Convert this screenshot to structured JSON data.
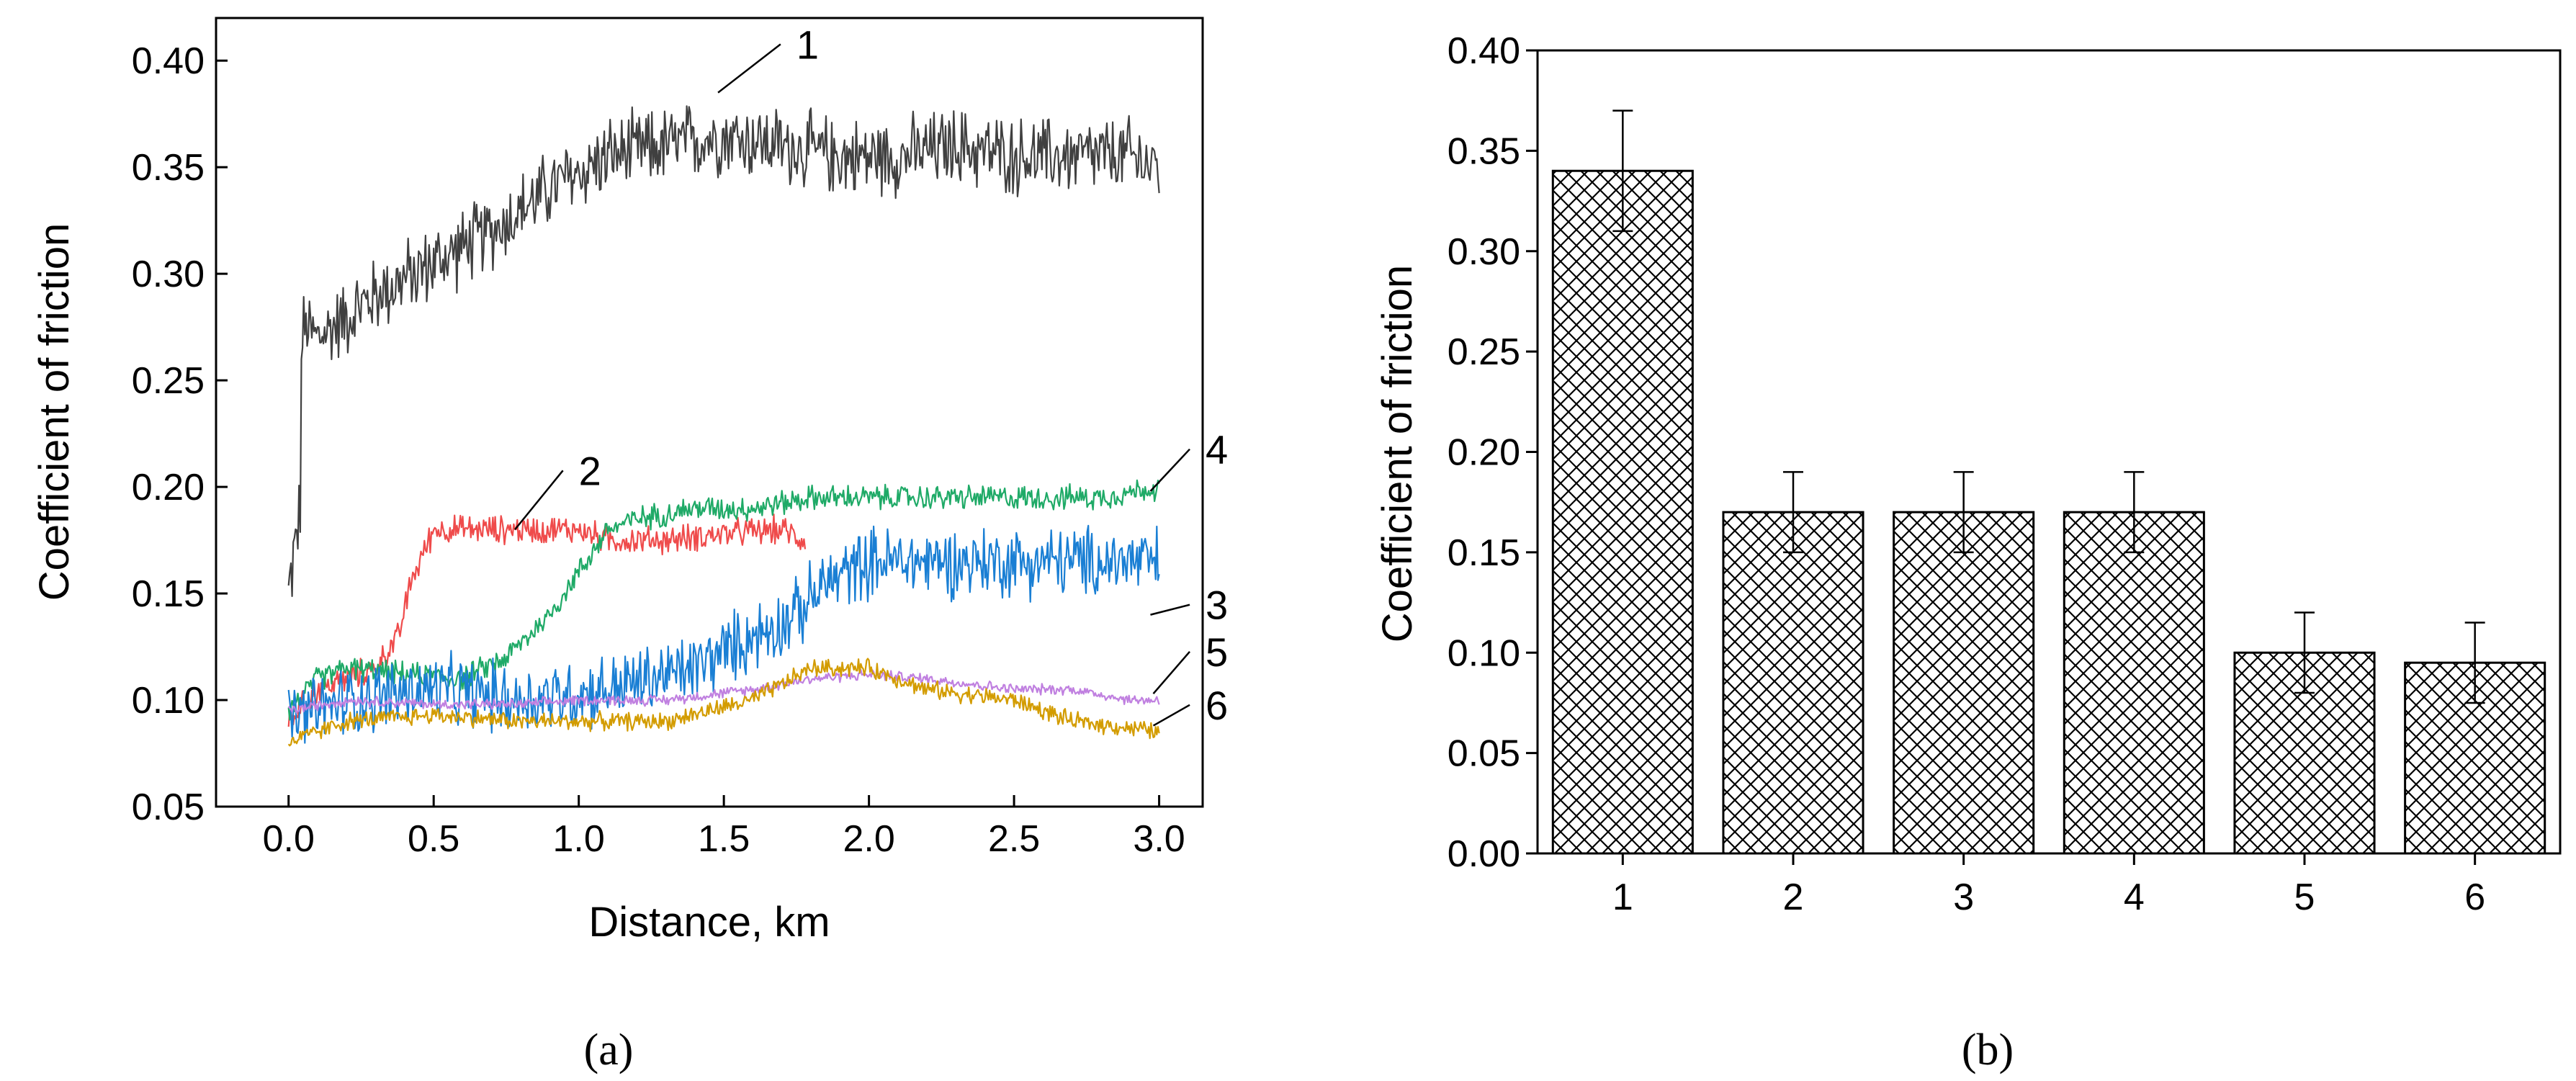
{
  "chart_data": [
    {
      "type": "line",
      "panel_label": "(a)",
      "xlabel": "Distance, km",
      "ylabel": "Coefficient of friction",
      "xlim": [
        -0.25,
        3.15
      ],
      "ylim": [
        0.05,
        0.42
      ],
      "xticks": [
        0.0,
        0.5,
        1.0,
        1.5,
        2.0,
        2.5,
        3.0
      ],
      "xtick_labels": [
        "0.0",
        "0.5",
        "1.0",
        "1.5",
        "2.0",
        "2.5",
        "3.0"
      ],
      "yticks": [
        0.05,
        0.1,
        0.15,
        0.2,
        0.25,
        0.3,
        0.35,
        0.4
      ],
      "ytick_labels": [
        "0.05",
        "0.10",
        "0.15",
        "0.20",
        "0.25",
        "0.30",
        "0.35",
        "0.40"
      ],
      "series": [
        {
          "name": "1",
          "color": "#404040",
          "noise": 0.022,
          "x": [
            0.0,
            0.02,
            0.04,
            0.045,
            0.06,
            0.1,
            0.3,
            0.5,
            0.7,
            0.9,
            1.1,
            1.3,
            1.5,
            1.7,
            1.9,
            2.1,
            2.3,
            2.5,
            2.7,
            2.9,
            3.0
          ],
          "y": [
            0.15,
            0.17,
            0.19,
            0.27,
            0.275,
            0.27,
            0.29,
            0.305,
            0.32,
            0.34,
            0.355,
            0.36,
            0.365,
            0.36,
            0.355,
            0.355,
            0.36,
            0.355,
            0.355,
            0.355,
            0.35
          ]
        },
        {
          "name": "2",
          "color": "#ef4b4b",
          "noise": 0.008,
          "x": [
            0.0,
            0.1,
            0.3,
            0.38,
            0.42,
            0.5,
            0.7,
            0.9,
            1.0,
            1.1,
            1.3,
            1.5,
            1.7,
            1.78
          ],
          "y": [
            0.09,
            0.105,
            0.115,
            0.13,
            0.155,
            0.18,
            0.18,
            0.18,
            0.18,
            0.175,
            0.175,
            0.178,
            0.18,
            0.175
          ]
        },
        {
          "name": "4",
          "color": "#1faa67",
          "noise": 0.007,
          "x": [
            0.0,
            0.1,
            0.2,
            0.4,
            0.6,
            0.75,
            0.9,
            1.0,
            1.1,
            1.2,
            1.4,
            1.6,
            1.8,
            2.0,
            2.2,
            2.4,
            2.6,
            2.8,
            3.0
          ],
          "y": [
            0.095,
            0.11,
            0.115,
            0.112,
            0.11,
            0.12,
            0.14,
            0.16,
            0.18,
            0.185,
            0.19,
            0.19,
            0.195,
            0.195,
            0.195,
            0.195,
            0.195,
            0.195,
            0.2
          ]
        },
        {
          "name": "3",
          "color": "#1a7fd4",
          "noise": 0.02,
          "x": [
            0.0,
            0.2,
            0.5,
            0.8,
            1.1,
            1.4,
            1.6,
            1.75,
            1.85,
            2.0,
            2.2,
            2.5,
            2.8,
            3.0
          ],
          "y": [
            0.09,
            0.1,
            0.105,
            0.1,
            0.105,
            0.115,
            0.13,
            0.14,
            0.155,
            0.165,
            0.165,
            0.165,
            0.165,
            0.165
          ]
        },
        {
          "name": "5",
          "color": "#c080e0",
          "noise": 0.003,
          "x": [
            0.0,
            0.2,
            0.5,
            0.8,
            1.0,
            1.3,
            1.6,
            1.8,
            2.0,
            2.2,
            2.5,
            2.7,
            2.9,
            3.0
          ],
          "y": [
            0.095,
            0.1,
            0.098,
            0.098,
            0.1,
            0.1,
            0.105,
            0.11,
            0.112,
            0.11,
            0.105,
            0.105,
            0.1,
            0.1
          ]
        },
        {
          "name": "6",
          "color": "#d39c00",
          "noise": 0.005,
          "x": [
            0.0,
            0.2,
            0.5,
            0.8,
            1.0,
            1.3,
            1.6,
            1.8,
            2.0,
            2.2,
            2.5,
            2.7,
            2.9,
            3.0
          ],
          "y": [
            0.08,
            0.09,
            0.093,
            0.09,
            0.09,
            0.09,
            0.1,
            0.115,
            0.115,
            0.105,
            0.1,
            0.09,
            0.087,
            0.085
          ]
        }
      ],
      "annotations": [
        {
          "text": "1",
          "point": [
            1.48,
            0.385
          ],
          "text_pos": [
            1.75,
            0.405
          ]
        },
        {
          "text": "2",
          "point": [
            0.78,
            0.18
          ],
          "text_pos": [
            1.0,
            0.205
          ]
        },
        {
          "text": "4",
          "point": [
            2.97,
            0.198
          ],
          "text_pos": [
            3.16,
            0.215
          ]
        },
        {
          "text": "3",
          "point": [
            2.97,
            0.14
          ],
          "text_pos": [
            3.16,
            0.142
          ]
        },
        {
          "text": "5",
          "point": [
            2.98,
            0.103
          ],
          "text_pos": [
            3.16,
            0.12
          ]
        },
        {
          "text": "6",
          "point": [
            2.98,
            0.088
          ],
          "text_pos": [
            3.16,
            0.095
          ]
        }
      ]
    },
    {
      "type": "bar",
      "panel_label": "(b)",
      "xlabel": "",
      "ylabel": "Coefficient of friction",
      "ylim": [
        0.0,
        0.4
      ],
      "yticks": [
        0.0,
        0.05,
        0.1,
        0.15,
        0.2,
        0.25,
        0.3,
        0.35,
        0.4
      ],
      "ytick_labels": [
        "0.00",
        "0.05",
        "0.10",
        "0.15",
        "0.20",
        "0.25",
        "0.30",
        "0.35",
        "0.40"
      ],
      "categories": [
        "1",
        "2",
        "3",
        "4",
        "5",
        "6"
      ],
      "values": [
        0.34,
        0.17,
        0.17,
        0.17,
        0.1,
        0.095
      ],
      "errors": [
        0.03,
        0.02,
        0.02,
        0.02,
        0.02,
        0.02
      ],
      "fill_pattern": "crosshatch"
    }
  ]
}
